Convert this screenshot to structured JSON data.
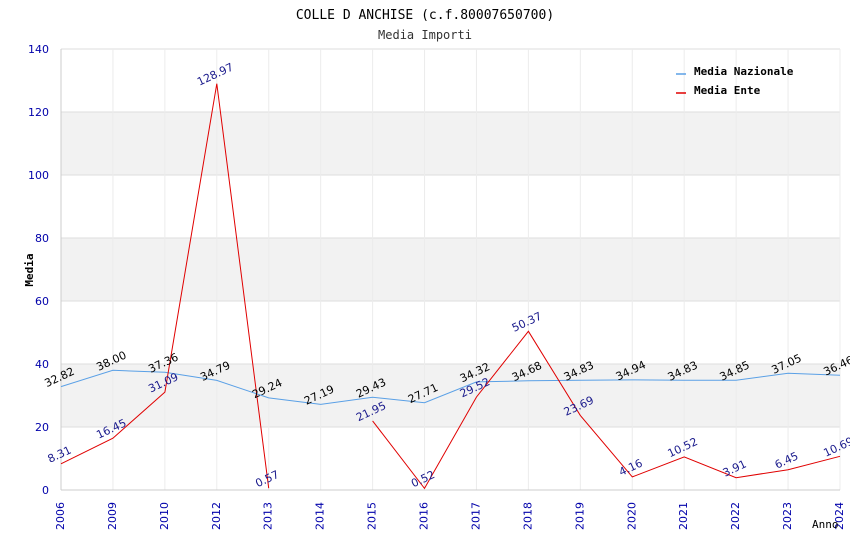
{
  "chart_data": {
    "type": "line",
    "title": "COLLE D ANCHISE (c.f.80007650700)",
    "subtitle": "Media Importi",
    "ylabel": "Media",
    "xlabel": "Anno",
    "ylim": [
      0,
      140
    ],
    "yticks": [
      0,
      20,
      40,
      60,
      80,
      100,
      120,
      140
    ],
    "categories": [
      "2006",
      "2009",
      "2010",
      "2012",
      "2013",
      "2014",
      "2015",
      "2016",
      "2017",
      "2018",
      "2019",
      "2020",
      "2021",
      "2022",
      "2023",
      "2024"
    ],
    "legend_position": "top-right",
    "series": [
      {
        "name": "Media Nazionale",
        "color": "#5aa0e6",
        "label_color": "#000000",
        "values": [
          32.82,
          38.0,
          37.36,
          34.79,
          29.24,
          27.19,
          29.43,
          27.71,
          34.32,
          34.68,
          34.83,
          34.94,
          34.83,
          34.85,
          37.05,
          36.46
        ],
        "labels": [
          "32.82",
          "38.00",
          "37.36",
          "34.79",
          "29.24",
          "27.19",
          "29.43",
          "27.71",
          "34.32",
          "34.68",
          "34.83",
          "34.94",
          "34.83",
          "34.85",
          "37.05",
          "36.46"
        ]
      },
      {
        "name": "Media Ente",
        "color": "#e00000",
        "label_color": "#1a1a8c",
        "values": [
          8.31,
          16.45,
          31.09,
          128.97,
          0.57,
          null,
          21.95,
          0.52,
          29.52,
          50.37,
          23.69,
          4.16,
          10.52,
          3.91,
          6.45,
          10.69
        ],
        "labels": [
          "8.31",
          "16.45",
          "31.09",
          "128.97",
          "0.57",
          "",
          "21.95",
          "0.52",
          "29.52",
          "50.37",
          "23.69",
          "4.16",
          "10.52",
          "3.91",
          "6.45",
          "10.69"
        ]
      }
    ],
    "colors": {
      "axis_tick_label": "#0000aa",
      "grid_band": "#f2f2f2",
      "grid_line": "#dddddd"
    }
  }
}
